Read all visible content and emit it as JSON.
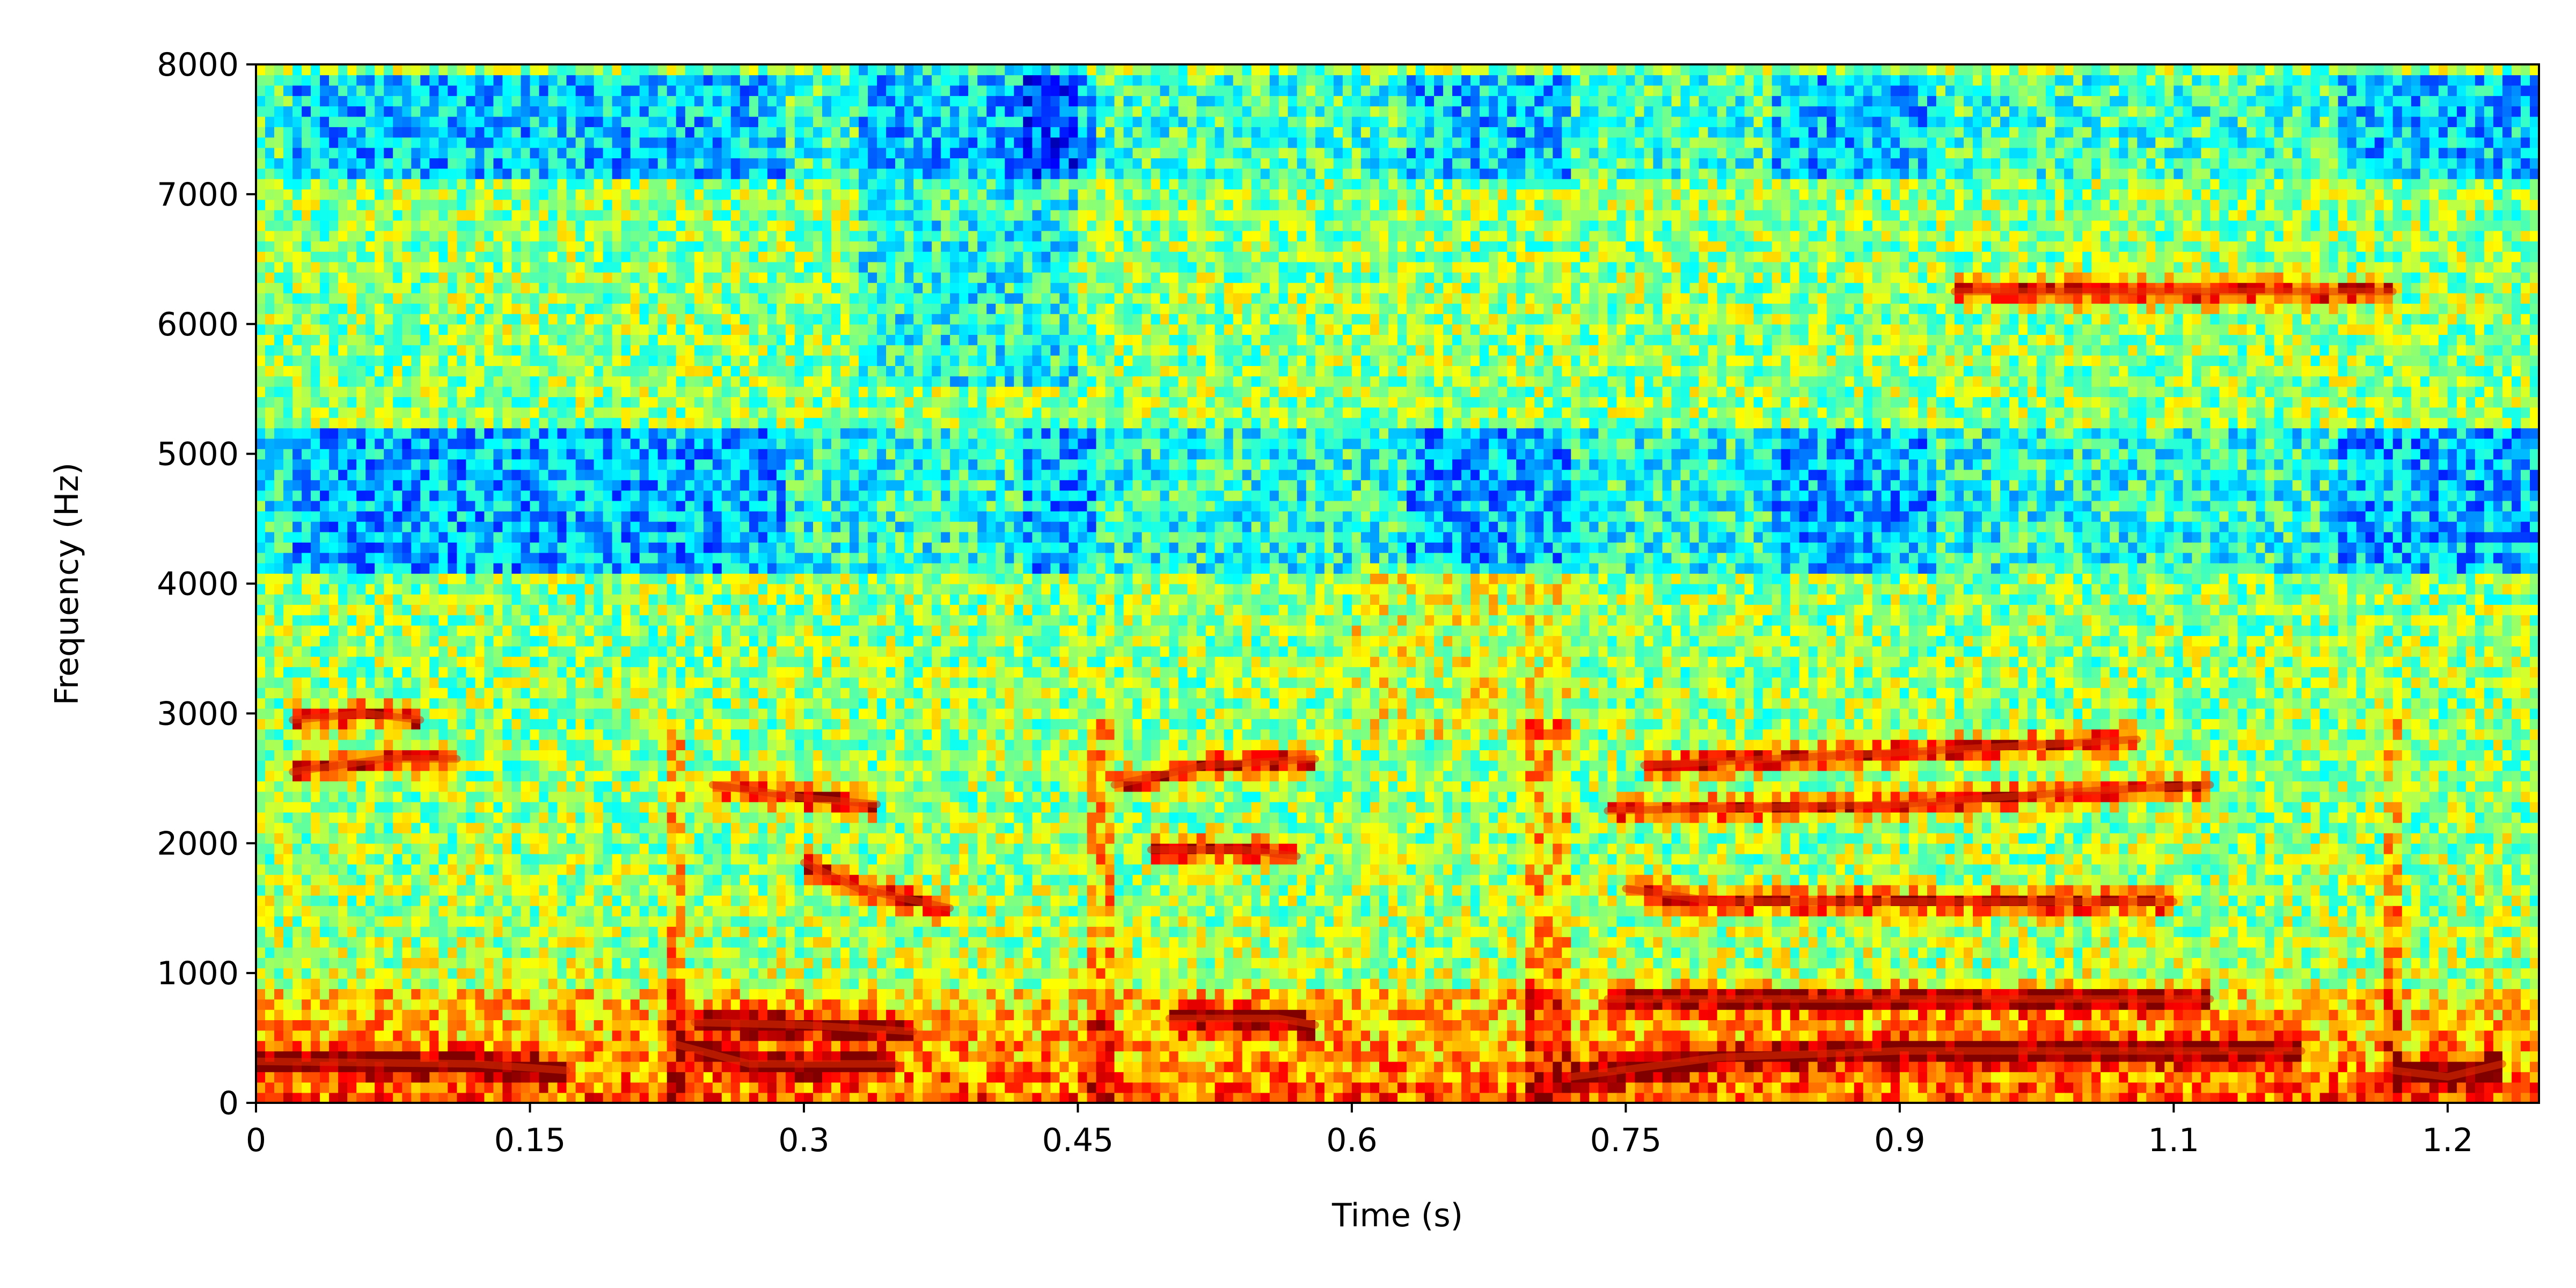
{
  "chart_data": {
    "type": "heatmap",
    "title": "",
    "xlabel": "Time (s)",
    "ylabel": "Frequency (Hz)",
    "xlim": [
      0,
      1.25
    ],
    "ylim": [
      0,
      8000
    ],
    "x_ticks": [
      {
        "value": 0,
        "label": "0"
      },
      {
        "value": 0.15,
        "label": "0.15"
      },
      {
        "value": 0.3,
        "label": "0.3"
      },
      {
        "value": 0.45,
        "label": "0.45"
      },
      {
        "value": 0.6,
        "label": "0.6"
      },
      {
        "value": 0.75,
        "label": "0.75"
      },
      {
        "value": 0.9,
        "label": "0.9"
      },
      {
        "value": 1.05,
        "label": "1.1"
      },
      {
        "value": 1.2,
        "label": "1.2"
      }
    ],
    "y_ticks": [
      {
        "value": 0,
        "label": "0"
      },
      {
        "value": 1000,
        "label": "1000"
      },
      {
        "value": 2000,
        "label": "2000"
      },
      {
        "value": 3000,
        "label": "3000"
      },
      {
        "value": 4000,
        "label": "4000"
      },
      {
        "value": 5000,
        "label": "5000"
      },
      {
        "value": 6000,
        "label": "6000"
      },
      {
        "value": 7000,
        "label": "7000"
      },
      {
        "value": 8000,
        "label": "8000"
      }
    ],
    "colormap": "jet",
    "grid": false,
    "legend": "none",
    "formant_tracks": [
      {
        "points": [
          [
            0.0,
            320
          ],
          [
            0.12,
            300
          ],
          [
            0.17,
            250
          ]
        ]
      },
      {
        "points": [
          [
            0.02,
            2550
          ],
          [
            0.07,
            2650
          ],
          [
            0.11,
            2650
          ]
        ]
      },
      {
        "points": [
          [
            0.02,
            2950
          ],
          [
            0.06,
            3000
          ],
          [
            0.09,
            2950
          ]
        ]
      },
      {
        "points": [
          [
            0.23,
            450
          ],
          [
            0.27,
            300
          ],
          [
            0.35,
            300
          ]
        ]
      },
      {
        "points": [
          [
            0.24,
            620
          ],
          [
            0.3,
            600
          ],
          [
            0.36,
            550
          ]
        ]
      },
      {
        "points": [
          [
            0.3,
            1850
          ],
          [
            0.33,
            1650
          ],
          [
            0.38,
            1500
          ]
        ]
      },
      {
        "points": [
          [
            0.25,
            2450
          ],
          [
            0.3,
            2350
          ],
          [
            0.34,
            2300
          ]
        ]
      },
      {
        "points": [
          [
            0.47,
            2450
          ],
          [
            0.52,
            2600
          ],
          [
            0.58,
            2650
          ]
        ]
      },
      {
        "points": [
          [
            0.49,
            1950
          ],
          [
            0.54,
            1950
          ],
          [
            0.57,
            1900
          ]
        ]
      },
      {
        "points": [
          [
            0.5,
            650
          ],
          [
            0.56,
            650
          ],
          [
            0.58,
            600
          ]
        ]
      },
      {
        "points": [
          [
            0.72,
            200
          ],
          [
            0.8,
            350
          ],
          [
            0.9,
            400
          ],
          [
            1.0,
            400
          ],
          [
            1.12,
            400
          ]
        ]
      },
      {
        "points": [
          [
            0.74,
            800
          ],
          [
            0.85,
            800
          ],
          [
            1.0,
            800
          ],
          [
            1.07,
            800
          ]
        ]
      },
      {
        "points": [
          [
            0.75,
            1650
          ],
          [
            0.8,
            1550
          ],
          [
            0.9,
            1550
          ],
          [
            1.05,
            1550
          ]
        ]
      },
      {
        "points": [
          [
            0.74,
            2250
          ],
          [
            0.9,
            2300
          ],
          [
            1.0,
            2400
          ],
          [
            1.07,
            2450
          ]
        ]
      },
      {
        "points": [
          [
            0.76,
            2600
          ],
          [
            0.9,
            2700
          ],
          [
            1.03,
            2800
          ]
        ]
      },
      {
        "points": [
          [
            0.93,
            6250
          ],
          [
            1.1,
            6250
          ],
          [
            1.17,
            6250
          ]
        ]
      },
      {
        "points": [
          [
            1.17,
            250
          ],
          [
            1.2,
            200
          ],
          [
            1.23,
            300
          ]
        ]
      }
    ]
  }
}
